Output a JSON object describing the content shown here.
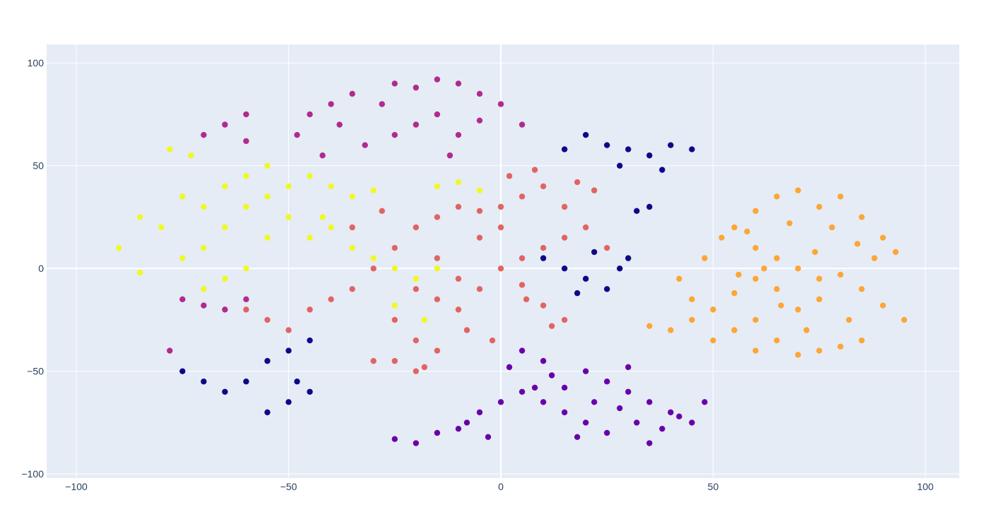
{
  "chart_data": {
    "type": "scatter",
    "title": "",
    "xlabel": "",
    "ylabel": "",
    "xlim": [
      -107,
      108
    ],
    "ylim": [
      -102,
      109
    ],
    "grid": true,
    "legend": "none",
    "background_color": "#e5ecf6",
    "grid_color": "#ffffff",
    "x_ticks": [
      {
        "value": -100,
        "label": "−100"
      },
      {
        "value": -50,
        "label": "−50"
      },
      {
        "value": 0,
        "label": "0"
      },
      {
        "value": 50,
        "label": "50"
      },
      {
        "value": 100,
        "label": "100"
      }
    ],
    "y_ticks": [
      {
        "value": 100,
        "label": "100"
      },
      {
        "value": 50,
        "label": "50"
      },
      {
        "value": 0,
        "label": "0"
      },
      {
        "value": -50,
        "label": "−50"
      },
      {
        "value": -100,
        "label": "−100"
      }
    ],
    "series": [
      {
        "color": "#fca636",
        "points": [
          [
            55,
            20
          ],
          [
            60,
            28
          ],
          [
            65,
            35
          ],
          [
            70,
            38
          ],
          [
            75,
            30
          ],
          [
            80,
            35
          ],
          [
            85,
            25
          ],
          [
            90,
            15
          ],
          [
            93,
            8
          ],
          [
            60,
            10
          ],
          [
            65,
            5
          ],
          [
            70,
            0
          ],
          [
            75,
            -5
          ],
          [
            80,
            -3
          ],
          [
            85,
            -10
          ],
          [
            90,
            -18
          ],
          [
            95,
            -25
          ],
          [
            60,
            -5
          ],
          [
            55,
            -12
          ],
          [
            50,
            -20
          ],
          [
            45,
            -25
          ],
          [
            40,
            -30
          ],
          [
            35,
            -28
          ],
          [
            60,
            -25
          ],
          [
            65,
            -35
          ],
          [
            70,
            -42
          ],
          [
            75,
            -40
          ],
          [
            80,
            -38
          ],
          [
            85,
            -35
          ],
          [
            70,
            -20
          ],
          [
            75,
            -15
          ],
          [
            65,
            -10
          ],
          [
            60,
            -40
          ],
          [
            55,
            -30
          ],
          [
            50,
            -35
          ],
          [
            45,
            -15
          ],
          [
            42,
            -5
          ],
          [
            48,
            5
          ],
          [
            52,
            15
          ],
          [
            58,
            18
          ],
          [
            68,
            22
          ],
          [
            78,
            20
          ],
          [
            88,
            5
          ],
          [
            82,
            -25
          ],
          [
            72,
            -30
          ],
          [
            66,
            -18
          ],
          [
            56,
            -3
          ],
          [
            62,
            0
          ],
          [
            74,
            8
          ],
          [
            84,
            12
          ]
        ]
      },
      {
        "color": "#6a00a8",
        "points": [
          [
            5,
            -40
          ],
          [
            10,
            -45
          ],
          [
            20,
            -50
          ],
          [
            25,
            -55
          ],
          [
            30,
            -60
          ],
          [
            35,
            -65
          ],
          [
            40,
            -70
          ],
          [
            45,
            -75
          ],
          [
            48,
            -65
          ],
          [
            35,
            -85
          ],
          [
            25,
            -80
          ],
          [
            20,
            -75
          ],
          [
            15,
            -70
          ],
          [
            10,
            -65
          ],
          [
            5,
            -60
          ],
          [
            0,
            -65
          ],
          [
            -5,
            -70
          ],
          [
            -10,
            -78
          ],
          [
            -15,
            -80
          ],
          [
            -20,
            -85
          ],
          [
            -25,
            -83
          ],
          [
            -8,
            -75
          ],
          [
            2,
            -48
          ],
          [
            15,
            -58
          ],
          [
            28,
            -68
          ],
          [
            38,
            -78
          ],
          [
            42,
            -72
          ],
          [
            18,
            -82
          ],
          [
            12,
            -52
          ],
          [
            30,
            -48
          ],
          [
            22,
            -65
          ],
          [
            8,
            -58
          ],
          [
            -3,
            -82
          ],
          [
            32,
            -75
          ]
        ]
      },
      {
        "color": "#b12a90",
        "points": [
          [
            -25,
            90
          ],
          [
            -20,
            88
          ],
          [
            -15,
            92
          ],
          [
            -10,
            90
          ],
          [
            -5,
            85
          ],
          [
            0,
            80
          ],
          [
            5,
            70
          ],
          [
            -15,
            75
          ],
          [
            -20,
            70
          ],
          [
            -10,
            65
          ],
          [
            -25,
            65
          ],
          [
            -40,
            80
          ],
          [
            -35,
            85
          ],
          [
            -45,
            75
          ],
          [
            -38,
            70
          ],
          [
            -32,
            60
          ],
          [
            -42,
            55
          ],
          [
            -48,
            65
          ],
          [
            -60,
            75
          ],
          [
            -65,
            70
          ],
          [
            -70,
            65
          ],
          [
            -60,
            62
          ],
          [
            -75,
            -15
          ],
          [
            -70,
            -18
          ],
          [
            -65,
            -20
          ],
          [
            -60,
            -15
          ],
          [
            -78,
            -40
          ],
          [
            -12,
            55
          ],
          [
            -5,
            72
          ],
          [
            -28,
            80
          ]
        ]
      },
      {
        "color": "#0d0887",
        "points": [
          [
            20,
            65
          ],
          [
            25,
            60
          ],
          [
            30,
            58
          ],
          [
            35,
            55
          ],
          [
            40,
            60
          ],
          [
            45,
            58
          ],
          [
            28,
            50
          ],
          [
            38,
            48
          ],
          [
            15,
            58
          ],
          [
            32,
            28
          ],
          [
            35,
            30
          ],
          [
            10,
            5
          ],
          [
            15,
            0
          ],
          [
            20,
            -5
          ],
          [
            25,
            -10
          ],
          [
            30,
            5
          ],
          [
            22,
            8
          ],
          [
            28,
            0
          ],
          [
            18,
            -12
          ],
          [
            -75,
            -50
          ],
          [
            -70,
            -55
          ],
          [
            -65,
            -60
          ],
          [
            -60,
            -55
          ],
          [
            -55,
            -45
          ],
          [
            -50,
            -40
          ],
          [
            -45,
            -35
          ],
          [
            -55,
            -70
          ],
          [
            -50,
            -65
          ],
          [
            -45,
            -60
          ],
          [
            -48,
            -55
          ]
        ]
      },
      {
        "color": "#f0f921",
        "points": [
          [
            -85,
            25
          ],
          [
            -80,
            20
          ],
          [
            -90,
            10
          ],
          [
            -85,
            -2
          ],
          [
            -75,
            5
          ],
          [
            -70,
            10
          ],
          [
            -65,
            20
          ],
          [
            -60,
            30
          ],
          [
            -55,
            35
          ],
          [
            -50,
            40
          ],
          [
            -45,
            45
          ],
          [
            -40,
            40
          ],
          [
            -35,
            35
          ],
          [
            -65,
            40
          ],
          [
            -60,
            45
          ],
          [
            -55,
            50
          ],
          [
            -70,
            30
          ],
          [
            -75,
            35
          ],
          [
            -50,
            25
          ],
          [
            -55,
            15
          ],
          [
            -60,
            0
          ],
          [
            -65,
            -5
          ],
          [
            -70,
            -10
          ],
          [
            -45,
            15
          ],
          [
            -40,
            20
          ],
          [
            -35,
            10
          ],
          [
            -30,
            5
          ],
          [
            -25,
            0
          ],
          [
            -20,
            -5
          ],
          [
            -15,
            0
          ],
          [
            -15,
            40
          ],
          [
            -10,
            42
          ],
          [
            -5,
            38
          ],
          [
            -30,
            38
          ],
          [
            -78,
            58
          ],
          [
            -73,
            55
          ],
          [
            -42,
            25
          ],
          [
            -25,
            -18
          ],
          [
            -18,
            -25
          ],
          [
            -10,
            -20
          ]
        ]
      },
      {
        "color": "#e16462",
        "points": [
          [
            -20,
            20
          ],
          [
            -15,
            25
          ],
          [
            -10,
            30
          ],
          [
            -5,
            28
          ],
          [
            0,
            30
          ],
          [
            5,
            35
          ],
          [
            10,
            40
          ],
          [
            15,
            30
          ],
          [
            20,
            20
          ],
          [
            25,
            10
          ],
          [
            -25,
            10
          ],
          [
            -30,
            0
          ],
          [
            -35,
            -10
          ],
          [
            -40,
            -15
          ],
          [
            -45,
            -20
          ],
          [
            -20,
            -10
          ],
          [
            -15,
            -15
          ],
          [
            -10,
            -20
          ],
          [
            -5,
            -10
          ],
          [
            0,
            0
          ],
          [
            5,
            5
          ],
          [
            10,
            10
          ],
          [
            15,
            15
          ],
          [
            -15,
            5
          ],
          [
            -10,
            -5
          ],
          [
            -5,
            15
          ],
          [
            0,
            20
          ],
          [
            -25,
            -25
          ],
          [
            -20,
            -35
          ],
          [
            -15,
            -40
          ],
          [
            -25,
            -45
          ],
          [
            -20,
            -50
          ],
          [
            -30,
            -45
          ],
          [
            12,
            -28
          ],
          [
            15,
            -25
          ],
          [
            -50,
            -30
          ],
          [
            -55,
            -25
          ],
          [
            -60,
            -20
          ],
          [
            2,
            45
          ],
          [
            8,
            48
          ],
          [
            18,
            42
          ],
          [
            22,
            38
          ],
          [
            -8,
            -30
          ],
          [
            -2,
            -35
          ],
          [
            6,
            -15
          ],
          [
            -35,
            20
          ],
          [
            -28,
            28
          ],
          [
            -18,
            -48
          ],
          [
            5,
            -8
          ],
          [
            10,
            -18
          ]
        ]
      }
    ]
  }
}
